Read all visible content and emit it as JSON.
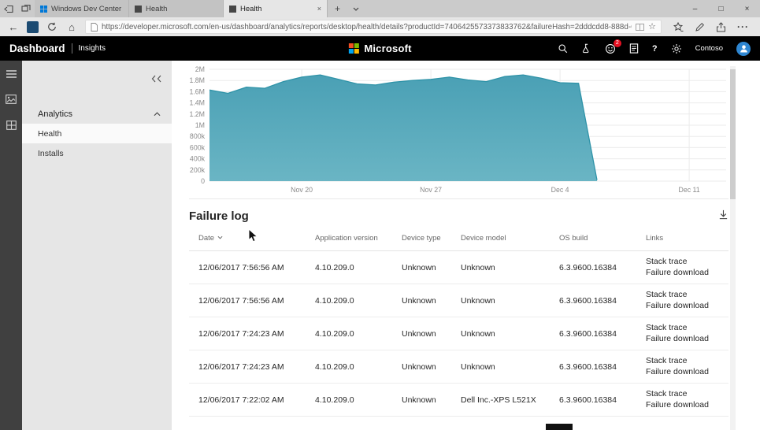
{
  "browser": {
    "tabs": [
      {
        "label": "Windows Dev Center",
        "active": false
      },
      {
        "label": "Health",
        "active": false
      },
      {
        "label": "Health",
        "active": true
      }
    ],
    "url": "https://developer.microsoft.com/en-us/dashboard/analytics/reports/desktop/health/details?productId=7406425573373833762&failureHash=2dddcdd8-888d-632c-4e84-82df8eeca",
    "icons": {
      "back": "←",
      "home": "⌂",
      "favorite": "☆",
      "more": "···",
      "new_tab": "+",
      "minimize": "–",
      "maximize": "□",
      "close": "×",
      "tab_close": "×"
    }
  },
  "header": {
    "brand": "Dashboard",
    "insights": "Insights",
    "microsoft": "Microsoft",
    "help": "?",
    "account_name": "Contoso",
    "notification_count": "2",
    "logo_colors": {
      "tl": "#f25022",
      "tr": "#7fba00",
      "bl": "#00a4ef",
      "br": "#ffb900"
    }
  },
  "sidebar": {
    "section_label": "Analytics",
    "items": [
      {
        "label": "Health",
        "selected": true
      },
      {
        "label": "Installs",
        "selected": false
      }
    ]
  },
  "failure_log": {
    "title": "Failure log",
    "columns": [
      "Date",
      "Application version",
      "Device type",
      "Device model",
      "OS build",
      "Links"
    ],
    "rows": [
      {
        "date": "12/06/2017 7:56:56 AM",
        "app_version": "4.10.209.0",
        "device_type": "Unknown",
        "device_model": "Unknown",
        "os_build": "6.3.9600.16384",
        "links": [
          "Stack trace",
          "Failure download"
        ]
      },
      {
        "date": "12/06/2017 7:56:56 AM",
        "app_version": "4.10.209.0",
        "device_type": "Unknown",
        "device_model": "Unknown",
        "os_build": "6.3.9600.16384",
        "links": [
          "Stack trace",
          "Failure download"
        ]
      },
      {
        "date": "12/06/2017 7:24:23 AM",
        "app_version": "4.10.209.0",
        "device_type": "Unknown",
        "device_model": "Unknown",
        "os_build": "6.3.9600.16384",
        "links": [
          "Stack trace",
          "Failure download"
        ]
      },
      {
        "date": "12/06/2017 7:24:23 AM",
        "app_version": "4.10.209.0",
        "device_type": "Unknown",
        "device_model": "Unknown",
        "os_build": "6.3.9600.16384",
        "links": [
          "Stack trace",
          "Failure download"
        ]
      },
      {
        "date": "12/06/2017 7:22:02 AM",
        "app_version": "4.10.209.0",
        "device_type": "Unknown",
        "device_model": "Dell Inc.-XPS L521X",
        "os_build": "6.3.9600.16384",
        "links": [
          "Stack trace",
          "Failure download"
        ]
      }
    ]
  },
  "chart_data": {
    "type": "area",
    "title": "",
    "x_range": [
      0,
      28
    ],
    "x_ticks": [
      {
        "pos": 5,
        "label": "Nov 20"
      },
      {
        "pos": 12,
        "label": "Nov 27"
      },
      {
        "pos": 19,
        "label": "Dec 4"
      },
      {
        "pos": 26,
        "label": "Dec 11"
      }
    ],
    "ylim": [
      0,
      2000000
    ],
    "y_ticks": [
      {
        "value": 2000000,
        "label": "2M"
      },
      {
        "value": 1800000,
        "label": "1.8M"
      },
      {
        "value": 1600000,
        "label": "1.6M"
      },
      {
        "value": 1400000,
        "label": "1.4M"
      },
      {
        "value": 1200000,
        "label": "1.2M"
      },
      {
        "value": 1000000,
        "label": "1M"
      },
      {
        "value": 800000,
        "label": "800k"
      },
      {
        "value": 600000,
        "label": "600k"
      },
      {
        "value": 400000,
        "label": "400k"
      },
      {
        "value": 200000,
        "label": "200k"
      },
      {
        "value": 0,
        "label": "0"
      }
    ],
    "grid": true,
    "legend": false,
    "series": [
      {
        "name": "",
        "x": [
          0,
          1,
          2,
          3,
          4,
          5,
          6,
          7,
          8,
          9,
          10,
          11,
          12,
          13,
          14,
          15,
          16,
          17,
          18,
          19,
          20,
          21
        ],
        "values": [
          1630000,
          1570000,
          1680000,
          1660000,
          1780000,
          1860000,
          1900000,
          1820000,
          1740000,
          1720000,
          1770000,
          1800000,
          1820000,
          1860000,
          1810000,
          1780000,
          1870000,
          1900000,
          1840000,
          1760000,
          1750000,
          20000
        ]
      }
    ],
    "fill_top": "#4aa0b5",
    "fill_bottom": "#6ab5c4",
    "line_color": "#2f93a8"
  }
}
